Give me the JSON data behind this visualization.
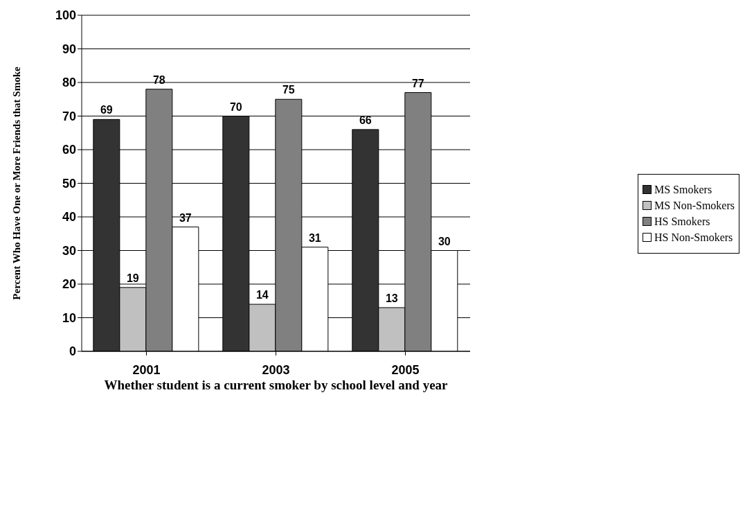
{
  "chart_data": {
    "type": "bar",
    "xlabel": "Whether student is a current smoker by school level and year",
    "ylabel": "Percent Who Have One or More Friends that Smoke",
    "categories": [
      "2001",
      "2003",
      "2005"
    ],
    "series": [
      {
        "name": "MS Smokers",
        "color": "#333333",
        "values": [
          69,
          70,
          66
        ]
      },
      {
        "name": "MS Non-Smokers",
        "color": "#c0c0c0",
        "values": [
          19,
          14,
          13
        ]
      },
      {
        "name": "HS Smokers",
        "color": "#808080",
        "values": [
          78,
          75,
          77
        ]
      },
      {
        "name": "HS Non-Smokers",
        "color": "#ffffff",
        "values": [
          37,
          31,
          30
        ]
      }
    ],
    "ylim": [
      0,
      100
    ],
    "yticks": [
      0,
      10,
      20,
      30,
      40,
      50,
      60,
      70,
      80,
      90,
      100
    ],
    "grid": "y",
    "legend": "right",
    "data_labels": true
  }
}
